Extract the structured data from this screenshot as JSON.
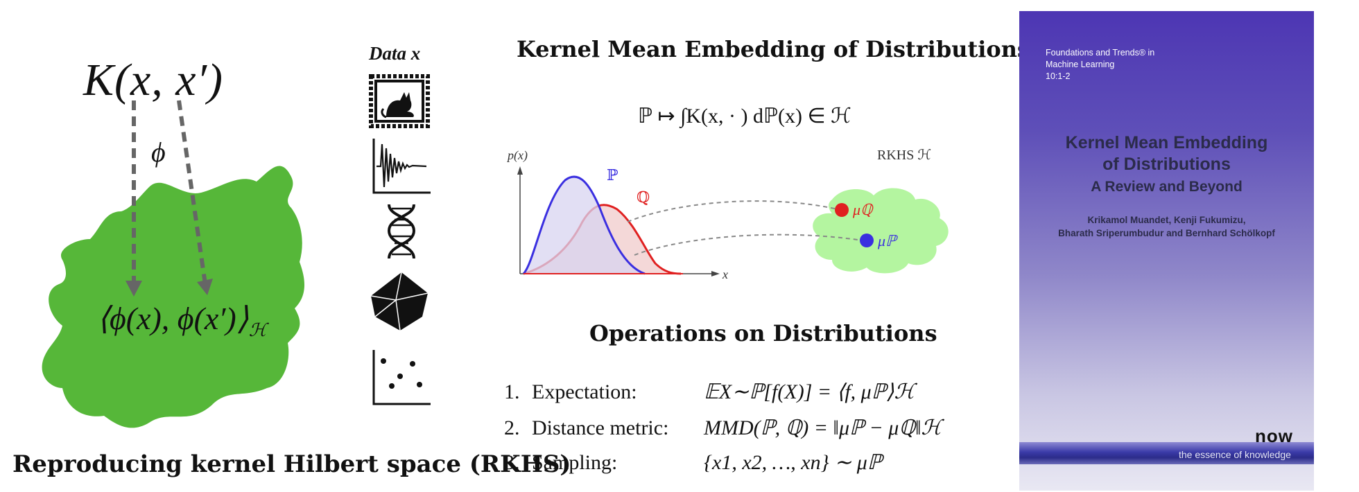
{
  "rkhs_panel": {
    "kernel": "K(x, x′)",
    "feature_map": "ϕ",
    "inner_product": "⟨ϕ(x), ϕ(x′)⟩",
    "inner_product_space": "ℋ",
    "caption": "Reproducing kernel Hilbert space (RKHS)",
    "blob_color": "#56b739",
    "arrow_color": "#666666"
  },
  "data_panel": {
    "title": "Data x",
    "icons": [
      "cat-image-icon",
      "signal-waveform-icon",
      "dna-helix-icon",
      "polyhedron-icon",
      "scatter-points-icon"
    ]
  },
  "embedding_panel": {
    "title": "Kernel Mean Embedding of Distributions",
    "formula": "ℙ ↦ ∫K(x, · ) dℙ(x) ∈ ℋ",
    "plot_ylabel": "p(x)",
    "plot_xlabel": "x",
    "dist_p_label": "ℙ",
    "dist_q_label": "ℚ",
    "rkhs_label": "RKHS ℋ",
    "mu_q_label": "μℚ",
    "mu_p_label": "μℙ",
    "color_p": "#3a2fe0",
    "color_q": "#e02020",
    "cloud_color": "#b4f5a0"
  },
  "operations_panel": {
    "title": "Operations on Distributions",
    "items": [
      {
        "num": "1.",
        "name": "Expectation:",
        "expr": "𝔼X∼ℙ[f(X)] = ⟨f, μℙ⟩ℋ"
      },
      {
        "num": "2.",
        "name": "Distance metric:",
        "expr": "MMD(ℙ, ℚ) = ‖μℙ − μℚ‖ℋ"
      },
      {
        "num": "3.",
        "name": "Sampling:",
        "expr": "{x1, x2, …, xn} ∼ μℙ"
      }
    ]
  },
  "book_cover": {
    "series_line1": "Foundations and Trends® in",
    "series_line2": "Machine Learning",
    "series_line3": "10:1-2",
    "title_line1": "Kernel Mean Embedding",
    "title_line2": "of Distributions",
    "subtitle": "A Review and Beyond",
    "authors_line1": "Krikamol Muandet, Kenji Fukumizu,",
    "authors_line2": "Bharath Sriperumbudur and Bernhard Schölkopf",
    "publisher": "now",
    "tagline": "the essence of knowledge"
  }
}
